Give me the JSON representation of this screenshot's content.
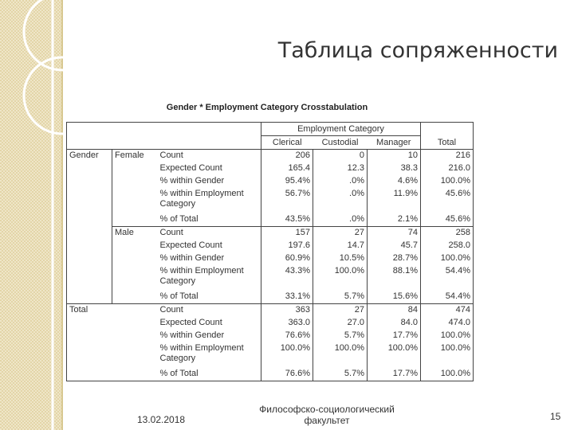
{
  "slide": {
    "title": "Таблица сопряженности",
    "date": "13.02.2018",
    "faculty": [
      "Философско-социологический",
      "факультет"
    ],
    "page": "15"
  },
  "table": {
    "caption": "Gender * Employment Category Crosstabulation",
    "header_group": "Employment Category",
    "columns": [
      "Clerical",
      "Custodial",
      "Manager",
      "Total"
    ],
    "sections": [
      {
        "label": "Gender",
        "subsections": [
          {
            "label": "Female",
            "rows": [
              {
                "label": "Count",
                "cells": [
                  "206",
                  "0",
                  "10",
                  "216"
                ]
              },
              {
                "label": "Expected Count",
                "cells": [
                  "165.4",
                  "12.3",
                  "38.3",
                  "216.0"
                ]
              },
              {
                "label": "% within Gender",
                "cells": [
                  "95.4%",
                  ".0%",
                  "4.6%",
                  "100.0%"
                ]
              },
              {
                "label": "% within Employment Category",
                "cells": [
                  "56.7%",
                  ".0%",
                  "11.9%",
                  "45.6%"
                ]
              },
              {
                "label": "% of Total",
                "cells": [
                  "43.5%",
                  ".0%",
                  "2.1%",
                  "45.6%"
                ]
              }
            ]
          },
          {
            "label": "Male",
            "rows": [
              {
                "label": "Count",
                "cells": [
                  "157",
                  "27",
                  "74",
                  "258"
                ]
              },
              {
                "label": "Expected Count",
                "cells": [
                  "197.6",
                  "14.7",
                  "45.7",
                  "258.0"
                ]
              },
              {
                "label": "% within Gender",
                "cells": [
                  "60.9%",
                  "10.5%",
                  "28.7%",
                  "100.0%"
                ]
              },
              {
                "label": "% within Employment Category",
                "cells": [
                  "43.3%",
                  "100.0%",
                  "88.1%",
                  "54.4%"
                ]
              },
              {
                "label": "% of Total",
                "cells": [
                  "33.1%",
                  "5.7%",
                  "15.6%",
                  "54.4%"
                ]
              }
            ]
          }
        ]
      },
      {
        "label": "Total",
        "rows": [
          {
            "label": "Count",
            "cells": [
              "363",
              "27",
              "84",
              "474"
            ]
          },
          {
            "label": "Expected Count",
            "cells": [
              "363.0",
              "27.0",
              "84.0",
              "474.0"
            ]
          },
          {
            "label": "% within Gender",
            "cells": [
              "76.6%",
              "5.7%",
              "17.7%",
              "100.0%"
            ]
          },
          {
            "label": "% within Employment Category",
            "cells": [
              "100.0%",
              "100.0%",
              "100.0%",
              "100.0%"
            ]
          },
          {
            "label": "% of Total",
            "cells": [
              "76.6%",
              "5.7%",
              "17.7%",
              "100.0%"
            ]
          }
        ]
      }
    ]
  }
}
